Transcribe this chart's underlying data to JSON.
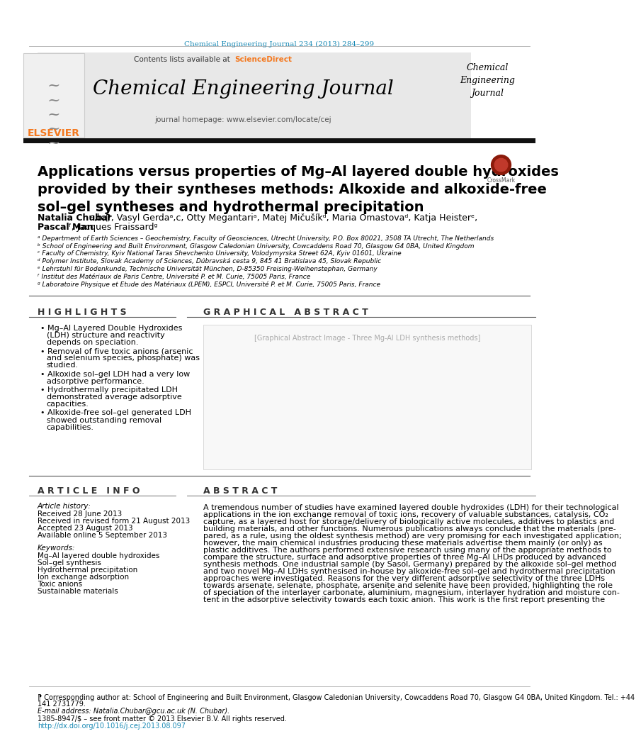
{
  "journal_line": "Chemical Engineering Journal 234 (2013) 284–299",
  "journal_line_color": "#1a8ab5",
  "contents_line": "Contents lists available at",
  "sciencedirect": "ScienceDirect",
  "sciencedirect_color": "#f47920",
  "journal_name": "Chemical Engineering Journal",
  "journal_homepage": "journal homepage: www.elsevier.com/locate/cej",
  "journal_name_right": "Chemical\nEngineering\nJournal",
  "elsevier_color": "#f47920",
  "title": "Applications versus properties of Mg–Al layered double hydroxides\nprovided by their syntheses methods: Alkoxide and alkoxide-free\nsol–gel syntheses and hydrothermal precipitation",
  "affiliations": [
    "ᵃ Department of Earth Sciences – Geochemistry, Faculty of Geosciences, Utrecht University, P.O. Box 80021, 3508 TA Utrecht, The Netherlands",
    "ᵇ School of Engineering and Built Environment, Glasgow Caledonian University, Cowcaddens Road 70, Glasgow G4 0BA, United Kingdom",
    "ᶜ Faculty of Chemistry, Kyiv National Taras Shevchenko University, Volodymyrska Street 62A, Kyiv 01601, Ukraine",
    "ᵈ Polymer Institute, Slovak Academy of Sciences, Dúbravská cesta 9, 845 41 Bratislava 45, Slovak Republic",
    "ᵉ Lehrstuhl für Bodenkunde, Technische Universität München, D-85350 Freising-Weihenstephan, Germany",
    "ᶠ Institut des Matériaux de Paris Centre, Université P. et M. Curie, 75005 Paris, France",
    "ᵍ Laboratoire Physique et Etude des Matériaux (LPEM), ESPCI, Université P. et M. Curie, 75005 Paris, France"
  ],
  "highlights_title": "H I G H L I G H T S",
  "highlights": [
    "Mg–Al Layered Double Hydroxides\n(LDH) structure and reactivity\ndepends on speciation.",
    "Removal of five toxic anions (arsenic\nand selenium species, phosphate) was\nstudied.",
    "Alkoxide sol–gel LDH had a very low\nadsorptive performance.",
    "Hydrothermally precipitated LDH\ndemonstrated average adsorptive\ncapacities.",
    "Alkoxide-free sol–gel generated LDH\nshowed outstanding removal\ncapabilities."
  ],
  "graphical_abstract_title": "G R A P H I C A L   A B S T R A C T",
  "article_info_title": "A R T I C L E   I N F O",
  "article_history_title": "Article history:",
  "article_history": "Received 28 June 2013\nReceived in revised form 21 August 2013\nAccepted 23 August 2013\nAvailable online 5 September 2013",
  "keywords_title": "Keywords:",
  "keywords": "Mg–Al layered double hydroxides\nSol–gel synthesis\nHydrothermal precipitation\nIon exchange adsorption\nToxic anions\nSustainable materials",
  "abstract_title": "A B S T R A C T",
  "abstract_text": "A tremendous number of studies have examined layered double hydroxides (LDH) for their technological\napplications in the ion exchange removal of toxic ions, recovery of valuable substances, catalysis, CO₂\ncapture, as a layered host for storage/delivery of biologically active molecules, additives to plastics and\nbuilding materials, and other functions. Numerous publications always conclude that the materials (pre-\npared, as a rule, using the oldest synthesis method) are very promising for each investigated application;\nhowever, the main chemical industries producing these materials advertise them mainly (or only) as\nplastic additives. The authors performed extensive research using many of the appropriate methods to\ncompare the structure, surface and adsorptive properties of three Mg–Al LHDs produced by advanced\nsynthesis methods. One industrial sample (by Sasol, Germany) prepared by the alkoxide sol–gel method\nand two novel Mg–Al LDHs synthesised in-house by alkoxide-free sol–gel and hydrothermal precipitation\napproaches were investigated. Reasons for the very different adsorptive selectivity of the three LDHs\ntowards arsenate, selenate, phosphate, arsenite and selenite have been provided, highlighting the role\nof speciation of the interlayer carbonate, aluminium, magnesium, interlayer hydration and moisture con-\ntent in the adsorptive selectivity towards each toxic anion. This work is the first report presenting the",
  "footer_line1": "⁋ Corresponding author at: School of Engineering and Built Environment, Glasgow Caledonian University, Cowcaddens Road 70, Glasgow G4 0BA, United Kingdom. Tel.: +44",
  "footer_line1b": "141 2731779.",
  "footer_email": "E-mail address: Natalia.Chubar@gcu.ac.uk (N. Chubar).",
  "footer_copy": "1385-8947/$ – see front matter © 2013 Elsevier B.V. All rights reserved.",
  "footer_doi": "http://dx.doi.org/10.1016/j.cej.2013.08.097",
  "footer_doi_color": "#1a8ab5",
  "bg_color": "#ffffff",
  "text_color": "#000000",
  "header_bg": "#e8e8e8"
}
